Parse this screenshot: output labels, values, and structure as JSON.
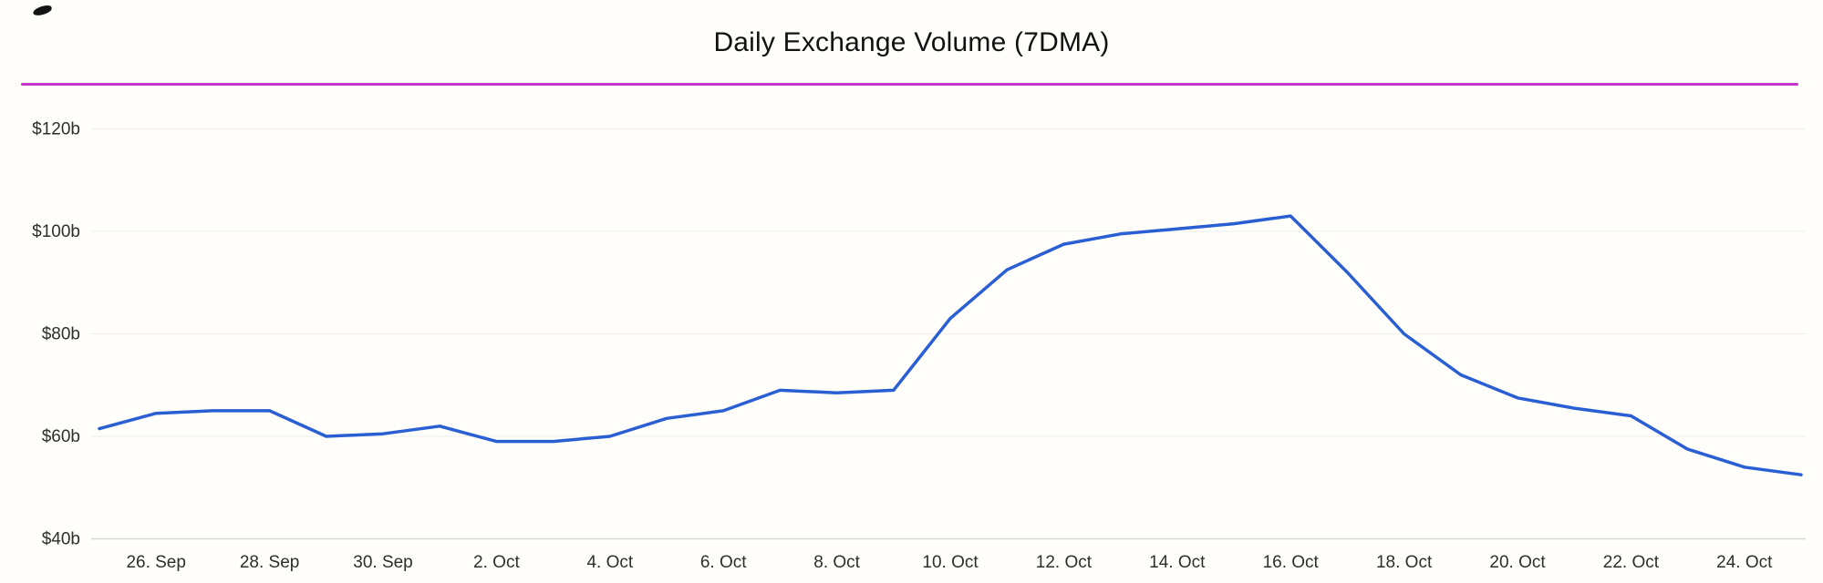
{
  "title": "Daily Exchange Volume (7DMA)",
  "divider_color": "#c335c6",
  "chart_data": {
    "type": "line",
    "title": "Daily Exchange Volume (7DMA)",
    "xlabel": "",
    "ylabel": "",
    "ylim": [
      40,
      120
    ],
    "grid": "horizontal",
    "legend": "none",
    "y_ticks": [
      "$120b",
      "$100b",
      "$80b",
      "$60b",
      "$40b"
    ],
    "y_tick_values": [
      120,
      100,
      80,
      60,
      40
    ],
    "x_tick_labels": [
      "26. Sep",
      "28. Sep",
      "30. Sep",
      "2. Oct",
      "4. Oct",
      "6. Oct",
      "8. Oct",
      "10. Oct",
      "12. Oct",
      "14. Oct",
      "16. Oct",
      "18. Oct",
      "20. Oct",
      "22. Oct",
      "24. Oct"
    ],
    "x": [
      "25. Sep",
      "26. Sep",
      "27. Sep",
      "28. Sep",
      "29. Sep",
      "30. Sep",
      "1. Oct",
      "2. Oct",
      "3. Oct",
      "4. Oct",
      "5. Oct",
      "6. Oct",
      "7. Oct",
      "8. Oct",
      "9. Oct",
      "10. Oct",
      "11. Oct",
      "12. Oct",
      "13. Oct",
      "14. Oct",
      "15. Oct",
      "16. Oct",
      "17. Oct",
      "18. Oct",
      "19. Oct",
      "20. Oct",
      "21. Oct",
      "22. Oct",
      "23. Oct",
      "24. Oct",
      "25. Oct"
    ],
    "series": [
      {
        "name": "Daily Exchange Volume (7DMA)",
        "color": "#2a5fd4",
        "unit": "$b",
        "values": [
          61.5,
          64.5,
          65,
          65,
          60,
          60.5,
          62,
          59,
          59,
          60,
          63.5,
          65,
          69,
          68.5,
          69,
          83,
          92.5,
          97.5,
          99.5,
          100.5,
          101.5,
          103,
          92,
          80,
          72,
          67.5,
          65.5,
          64,
          57.5,
          54,
          52.5
        ]
      }
    ]
  }
}
